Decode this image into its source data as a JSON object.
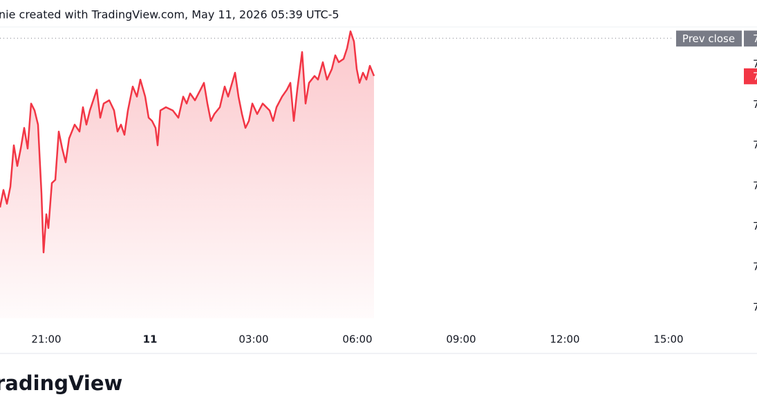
{
  "chart_data": {
    "type": "line",
    "header": "nie created with TradingView.com, May 11, 2026 05:39 UTC-5",
    "logo": "radingView",
    "x": [
      -4.34,
      -4.24,
      -4.14,
      -4.04,
      -3.94,
      -3.84,
      -3.74,
      -3.64,
      -3.54,
      -3.44,
      -3.34,
      -3.24,
      -3.14,
      -3.08,
      -3,
      -2.94,
      -2.84,
      -2.74,
      -2.64,
      -2.54,
      -2.44,
      -2.34,
      -2.18,
      -2.04,
      -1.94,
      -1.84,
      -1.74,
      -1.54,
      -1.44,
      -1.34,
      -1.18,
      -1.04,
      -0.94,
      -0.84,
      -0.74,
      -0.64,
      -0.5,
      -0.38,
      -0.28,
      -0.14,
      -0.04,
      0.06,
      0.16,
      0.22,
      0.3,
      0.46,
      0.66,
      0.82,
      0.96,
      1.06,
      1.16,
      1.3,
      1.46,
      1.56,
      1.66,
      1.76,
      1.86,
      2.02,
      2.16,
      2.26,
      2.46,
      2.56,
      2.66,
      2.76,
      2.86,
      2.96,
      3.1,
      3.26,
      3.46,
      3.56,
      3.66,
      3.82,
      3.96,
      4.06,
      4.16,
      4.26,
      4.4,
      4.5,
      4.6,
      4.76,
      4.86,
      5,
      5.12,
      5.26,
      5.36,
      5.46,
      5.6,
      5.7,
      5.8,
      5.9,
      5.98,
      6.06,
      6.16,
      6.26,
      6.36,
      6.48
    ],
    "series": [
      {
        "color": "#f23645",
        "values": [
          2.47,
          2.9,
          2.56,
          2.98,
          4,
          3.49,
          3.92,
          4.43,
          3.92,
          5.03,
          4.86,
          4.51,
          2.81,
          1.36,
          2.3,
          1.96,
          3.07,
          3.15,
          4.34,
          3.92,
          3.58,
          4.17,
          4.51,
          4.34,
          4.94,
          4.51,
          4.86,
          5.37,
          4.68,
          5.03,
          5.11,
          4.86,
          4.34,
          4.51,
          4.26,
          4.86,
          5.45,
          5.2,
          5.62,
          5.2,
          4.68,
          4.6,
          4.43,
          4,
          4.86,
          4.94,
          4.86,
          4.68,
          5.2,
          5.03,
          5.28,
          5.11,
          5.37,
          5.54,
          5.03,
          4.6,
          4.77,
          4.94,
          5.45,
          5.2,
          5.79,
          5.2,
          4.77,
          4.43,
          4.6,
          5.03,
          4.77,
          5.03,
          4.86,
          4.6,
          4.94,
          5.2,
          5.37,
          5.54,
          4.6,
          5.37,
          6.3,
          5.03,
          5.54,
          5.71,
          5.62,
          6.05,
          5.62,
          5.88,
          6.22,
          6.05,
          6.13,
          6.39,
          6.81,
          6.56,
          5.88,
          5.54,
          5.79,
          5.62,
          5.96,
          5.71
        ]
      }
    ],
    "xlim": [
      -4.34,
      17.16
    ],
    "xticks": [
      {
        "value": -3,
        "label": "21:00"
      },
      {
        "value": 0,
        "label": "11"
      },
      {
        "value": 3,
        "label": "03:00"
      },
      {
        "value": 6,
        "label": "06:00"
      },
      {
        "value": 9,
        "label": "09:00"
      },
      {
        "value": 12,
        "label": "12:00"
      },
      {
        "value": 15,
        "label": "15:00"
      }
    ],
    "ylim": [
      -0.26,
      6.9
    ],
    "yticks": [
      {
        "value": 6,
        "label": "7"
      },
      {
        "value": 5,
        "label": "7"
      },
      {
        "value": 4,
        "label": "7"
      },
      {
        "value": 3,
        "label": "7"
      },
      {
        "value": 2,
        "label": "7"
      },
      {
        "value": 1,
        "label": "7"
      },
      {
        "value": 0,
        "label": "7"
      }
    ],
    "prev_close": {
      "value": 6.64,
      "label": "Prev close",
      "price_label": "7"
    },
    "last_price": {
      "value": 5.71,
      "label": "7"
    }
  }
}
